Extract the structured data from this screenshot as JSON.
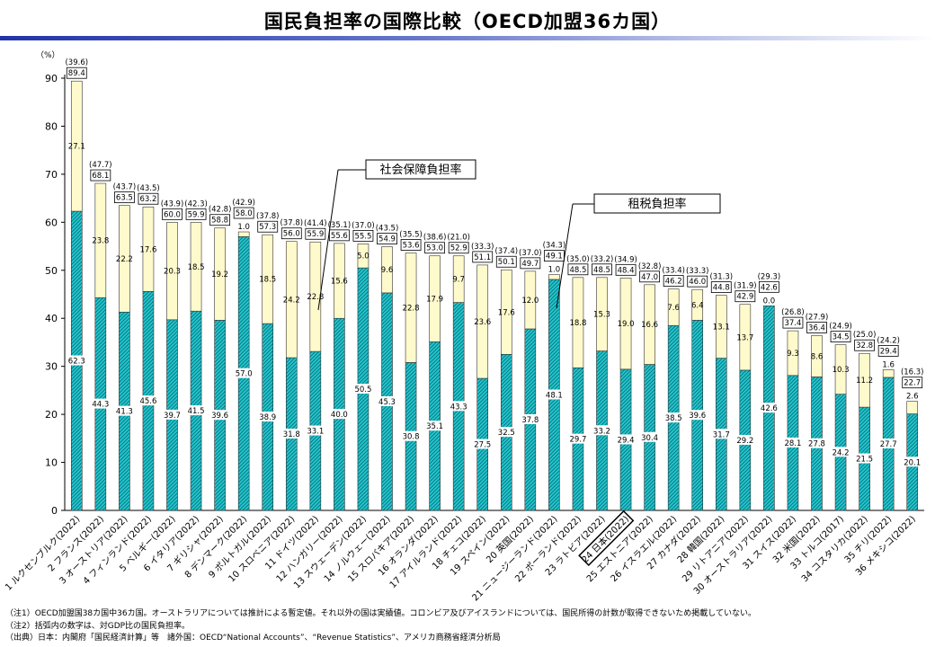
{
  "title": "国民負担率の国際比較（OECD加盟36カ国）",
  "chart_data": {
    "type": "bar",
    "stacked": true,
    "y_unit_label": "（%）",
    "ylim": [
      0,
      90
    ],
    "yticks": [
      0,
      10,
      20,
      30,
      40,
      50,
      60,
      70,
      80,
      90
    ],
    "categories": [
      "1 ルクセンブルク(2022)",
      "2 フランス(2022)",
      "3 オーストリア(2022)",
      "4 フィンランド(2022)",
      "5 ベルギー(2022)",
      "6 イタリア(2022)",
      "7 ギリシャ(2022)",
      "8 デンマーク(2022)",
      "9 ポルトガル(2022)",
      "10 スロベニア(2022)",
      "11 ドイツ(2022)",
      "12 ハンガリー(2022)",
      "13 スウェーデン(2022)",
      "14 ノルウェー(2022)",
      "15 スロバキア(2022)",
      "16 オランダ(2022)",
      "17 アイルランド(2022)",
      "18 チェコ(2022)",
      "19 スペイン(2022)",
      "20 英国(2022)",
      "21 ニュージーランド(2022)",
      "22 ポーランド(2022)",
      "23 ラトビア(2022)",
      "24 日本(2022)",
      "25 エストニア(2022)",
      "26 イスラエル(2022)",
      "27 カナダ(2022)",
      "28 韓国(2022)",
      "29 リトアニア(2022)",
      "30 オーストラリア(2022)",
      "31 スイス(2022)",
      "32 米国(2022)",
      "33 トルコ(2017)",
      "34 コスタリカ(2022)",
      "35 チリ(2022)",
      "36 メキシコ(2022)"
    ],
    "series": [
      {
        "name": "租税負担率",
        "values": [
          62.3,
          44.3,
          41.3,
          45.6,
          39.7,
          41.5,
          39.6,
          57.0,
          38.9,
          31.8,
          33.1,
          40.0,
          50.5,
          45.3,
          30.8,
          35.1,
          43.3,
          27.5,
          32.5,
          37.8,
          48.1,
          29.7,
          33.2,
          29.4,
          30.4,
          38.5,
          39.6,
          31.7,
          29.2,
          42.6,
          28.1,
          27.8,
          24.2,
          21.5,
          27.7,
          20.1
        ]
      },
      {
        "name": "社会保障負担率",
        "values": [
          27.1,
          23.8,
          22.2,
          17.6,
          20.3,
          18.5,
          19.2,
          1.0,
          18.5,
          24.2,
          22.8,
          15.6,
          5.0,
          9.6,
          22.8,
          17.9,
          9.7,
          23.6,
          17.6,
          12.0,
          1.0,
          18.8,
          15.3,
          19.0,
          16.6,
          7.6,
          6.4,
          13.1,
          13.7,
          0.0,
          9.3,
          8.6,
          10.3,
          11.2,
          1.6,
          2.6
        ]
      }
    ],
    "totals": [
      89.4,
      68.1,
      63.5,
      63.2,
      60.0,
      59.9,
      58.8,
      58.0,
      57.3,
      56.0,
      55.9,
      55.6,
      55.5,
      54.9,
      53.6,
      53.0,
      52.9,
      51.1,
      50.1,
      49.7,
      49.1,
      48.5,
      48.5,
      48.4,
      47.0,
      46.2,
      46.0,
      44.8,
      42.9,
      42.6,
      37.4,
      36.4,
      34.5,
      32.8,
      29.4,
      22.7
    ],
    "gdp_ratio_labels": [
      "(39.6)",
      "(47.7)",
      "(43.7)",
      "(43.5)",
      "(43.9)",
      "(42.3)",
      "(42.8)",
      "(42.9)",
      "(37.8)",
      "(37.8)",
      "(41.4)",
      "(35.1)",
      "(37.0)",
      "(43.5)",
      "(35.5)",
      "(38.6)",
      "(21.0)",
      "(33.3)",
      "(37.4)",
      "(37.0)",
      "(34.3)",
      "(35.0)",
      "(33.2)",
      "(34.9)",
      "(32.8)",
      "(33.4)",
      "(33.3)",
      "(31.3)",
      "(31.9)",
      "(29.3)",
      "(26.8)",
      "(27.9)",
      "(24.9)",
      "(25.0)",
      "(24.2)",
      "(16.3)"
    ],
    "highlight_index": 23,
    "callouts": [
      {
        "text": "社会保障負担率"
      },
      {
        "text": "租税負担率"
      }
    ],
    "colors": {
      "tax": "#22c7cf",
      "tax_hatch": "#0a6f78",
      "social": "#fffacc",
      "border": "#333333"
    },
    "grid": false,
    "legend": "callouts"
  },
  "notes": [
    "（注1）OECD加盟国38カ国中36カ国。オーストラリアについては推計による暫定値。それ以外の国は実績値。コロンビア及びアイスランドについては、国民所得の計数が取得できないため掲載していない。",
    "（注2）括弧内の数字は、対GDP比の国民負担率。",
    "（出典）日本：内閣府「国民経済計算」等　諸外国：OECD“National Accounts”、“Revenue Statistics”、アメリカ商務省経済分析局"
  ]
}
